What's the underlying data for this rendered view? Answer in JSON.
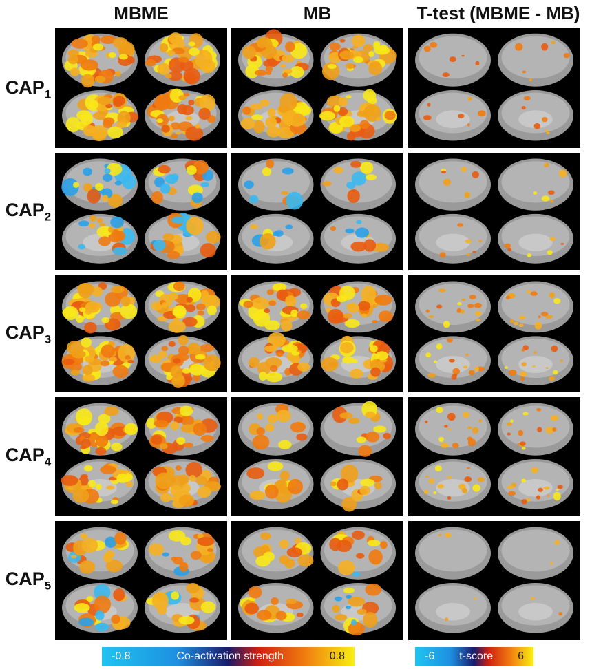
{
  "columns": [
    "MBME",
    "MB",
    "T-test (MBME - MB)"
  ],
  "rows": [
    {
      "label": "CAP",
      "subscript": "1"
    },
    {
      "label": "CAP",
      "subscript": "2"
    },
    {
      "label": "CAP",
      "subscript": "3"
    },
    {
      "label": "CAP",
      "subscript": "4"
    },
    {
      "label": "CAP",
      "subscript": "5"
    }
  ],
  "colorbars": [
    {
      "min": "-0.8",
      "title": "Co-activation strength",
      "max": "0.8"
    },
    {
      "min": "-6",
      "title": "t-score",
      "max": "6"
    }
  ]
}
